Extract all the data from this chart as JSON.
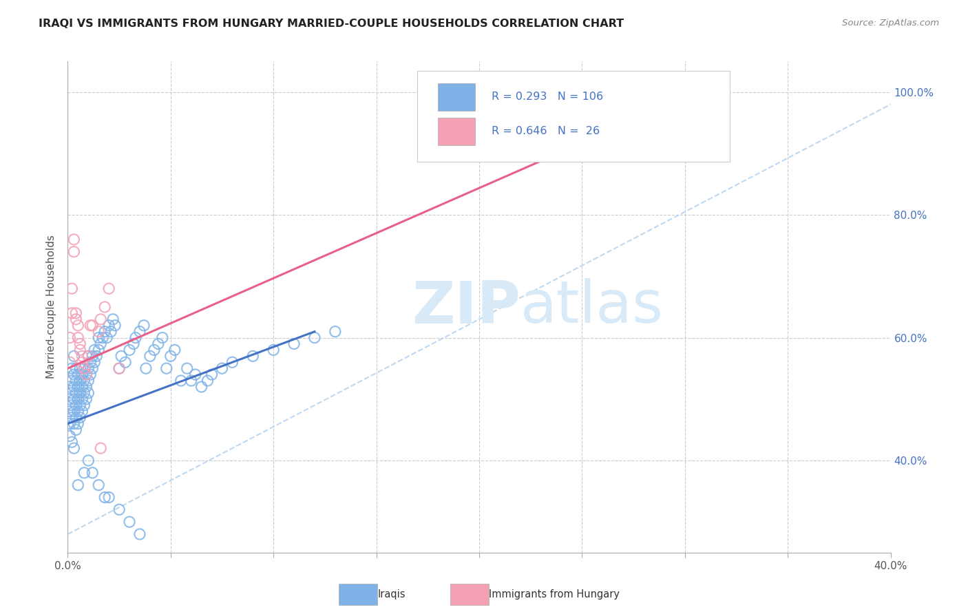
{
  "title": "IRAQI VS IMMIGRANTS FROM HUNGARY MARRIED-COUPLE HOUSEHOLDS CORRELATION CHART",
  "source": "Source: ZipAtlas.com",
  "ylabel": "Married-couple Households",
  "xlim": [
    0.0,
    0.4
  ],
  "ylim": [
    0.25,
    1.05
  ],
  "color_iraqi": "#7fb3e8",
  "color_hungary": "#f4a0b5",
  "trend_color_iraqi": "#4472c4",
  "trend_color_hungary": "#e8608a",
  "diagonal_color": "#b8d4f0",
  "background_color": "#ffffff",
  "grid_color": "#cccccc",
  "watermark_color": "#d8eaf8",
  "iraqi_x": [
    0.001,
    0.001,
    0.001,
    0.001,
    0.001,
    0.002,
    0.002,
    0.002,
    0.002,
    0.002,
    0.002,
    0.003,
    0.003,
    0.003,
    0.003,
    0.003,
    0.003,
    0.003,
    0.004,
    0.004,
    0.004,
    0.004,
    0.004,
    0.004,
    0.005,
    0.005,
    0.005,
    0.005,
    0.005,
    0.006,
    0.006,
    0.006,
    0.006,
    0.006,
    0.007,
    0.007,
    0.007,
    0.007,
    0.008,
    0.008,
    0.008,
    0.008,
    0.009,
    0.009,
    0.009,
    0.01,
    0.01,
    0.01,
    0.01,
    0.011,
    0.011,
    0.012,
    0.012,
    0.013,
    0.013,
    0.014,
    0.015,
    0.015,
    0.016,
    0.017,
    0.018,
    0.019,
    0.02,
    0.021,
    0.022,
    0.023,
    0.025,
    0.026,
    0.028,
    0.03,
    0.032,
    0.033,
    0.035,
    0.037,
    0.038,
    0.04,
    0.042,
    0.044,
    0.046,
    0.048,
    0.05,
    0.052,
    0.055,
    0.058,
    0.06,
    0.062,
    0.065,
    0.068,
    0.07,
    0.075,
    0.08,
    0.09,
    0.1,
    0.11,
    0.12,
    0.13,
    0.005,
    0.008,
    0.01,
    0.012,
    0.015,
    0.018,
    0.02,
    0.025,
    0.03,
    0.035
  ],
  "iraqi_y": [
    0.46,
    0.48,
    0.5,
    0.52,
    0.44,
    0.47,
    0.49,
    0.51,
    0.53,
    0.43,
    0.55,
    0.46,
    0.48,
    0.5,
    0.52,
    0.54,
    0.42,
    0.57,
    0.47,
    0.49,
    0.51,
    0.53,
    0.55,
    0.45,
    0.48,
    0.5,
    0.52,
    0.54,
    0.46,
    0.49,
    0.51,
    0.53,
    0.55,
    0.47,
    0.5,
    0.52,
    0.54,
    0.48,
    0.51,
    0.53,
    0.55,
    0.49,
    0.52,
    0.54,
    0.5,
    0.53,
    0.55,
    0.51,
    0.57,
    0.54,
    0.56,
    0.55,
    0.57,
    0.56,
    0.58,
    0.57,
    0.58,
    0.6,
    0.59,
    0.6,
    0.61,
    0.6,
    0.62,
    0.61,
    0.63,
    0.62,
    0.55,
    0.57,
    0.56,
    0.58,
    0.59,
    0.6,
    0.61,
    0.62,
    0.55,
    0.57,
    0.58,
    0.59,
    0.6,
    0.55,
    0.57,
    0.58,
    0.53,
    0.55,
    0.53,
    0.54,
    0.52,
    0.53,
    0.54,
    0.55,
    0.56,
    0.57,
    0.58,
    0.59,
    0.6,
    0.61,
    0.36,
    0.38,
    0.4,
    0.38,
    0.36,
    0.34,
    0.34,
    0.32,
    0.3,
    0.28
  ],
  "hungary_x": [
    0.001,
    0.001,
    0.002,
    0.002,
    0.003,
    0.003,
    0.004,
    0.004,
    0.005,
    0.005,
    0.006,
    0.006,
    0.007,
    0.007,
    0.008,
    0.009,
    0.01,
    0.011,
    0.012,
    0.015,
    0.016,
    0.018,
    0.02,
    0.025,
    0.305,
    0.016
  ],
  "hungary_y": [
    0.56,
    0.6,
    0.64,
    0.68,
    0.74,
    0.76,
    0.63,
    0.64,
    0.6,
    0.62,
    0.58,
    0.59,
    0.57,
    0.56,
    0.55,
    0.54,
    0.57,
    0.62,
    0.62,
    0.61,
    0.63,
    0.65,
    0.68,
    0.55,
    0.96,
    0.42
  ],
  "iraqi_trend_x0": 0.0,
  "iraqi_trend_x1": 0.12,
  "iraqi_trend_y0": 0.46,
  "iraqi_trend_y1": 0.61,
  "hungary_trend_x0": 0.0,
  "hungary_trend_x1": 0.32,
  "hungary_trend_y0": 0.55,
  "hungary_trend_y1": 1.02
}
